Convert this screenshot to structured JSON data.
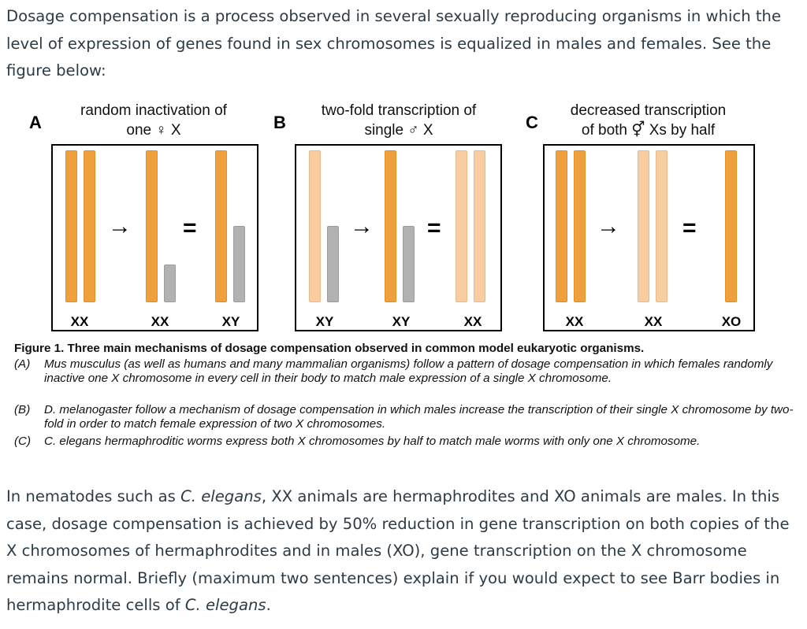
{
  "intro": "Dosage compensation is a process observed in several sexually reproducing organisms in which the level of expression of genes found in sex chromosomes is equalized in males and females. See the figure below:",
  "figure": {
    "panels": [
      {
        "letter": "A",
        "heading_line1": "random inactivation of",
        "heading_line2": "one ♀ X",
        "labels": [
          "XX",
          "XX",
          "XY"
        ],
        "arrow": "→",
        "equals": "="
      },
      {
        "letter": "B",
        "heading_line1": "two-fold transcription of",
        "heading_line2": "single ♂ X",
        "labels": [
          "XY",
          "XY",
          "XX"
        ],
        "arrow": "→",
        "equals": "="
      },
      {
        "letter": "C",
        "heading_line1": "decreased transcription",
        "heading_line2": "of both ⚥ Xs by half",
        "labels": [
          "XX",
          "XX",
          "XO"
        ],
        "arrow": "→",
        "equals": "="
      }
    ],
    "colors": {
      "active": "#f0a03a",
      "reduced": "#f8cda2",
      "y_or_inactive": "#b2b2b2"
    },
    "caption_title": "Figure 1. Three main mechanisms of dosage compensation observed in common model eukaryotic organisms.",
    "caption_items": [
      {
        "tag": "(A)",
        "text": "Mus musculus (as well as humans and many mammalian organisms) follow a pattern of dosage compensation in which females randomly inactive one X chromosome in every cell in their body to match male expression of a single X chromosome."
      },
      {
        "tag": "(B)",
        "text": "D. melanogaster follow a mechanism of dosage compensation in which males increase the transcription of their single X chromosome by two-fold in order to match female expression of two X chromosomes."
      },
      {
        "tag": "(C)",
        "text": "C. elegans hermaphroditic worms express both X chromosomes by half to match male worms with only one X chromosome."
      }
    ]
  },
  "question": {
    "part1": "In nematodes such as ",
    "species1": "C. elegans",
    "part2": ", XX animals are hermaphrodites and XO animals are males. In this case, dosage compensation is achieved by 50% reduction in gene transcription on both copies of the X chromosomes of hermaphrodites and in males (XO), gene transcription on the X chromosome remains normal. Briefly (maximum two sentences) explain if you would expect to see Barr bodies in hermaphrodite cells of ",
    "species2": "C. elegans",
    "part3": "."
  }
}
